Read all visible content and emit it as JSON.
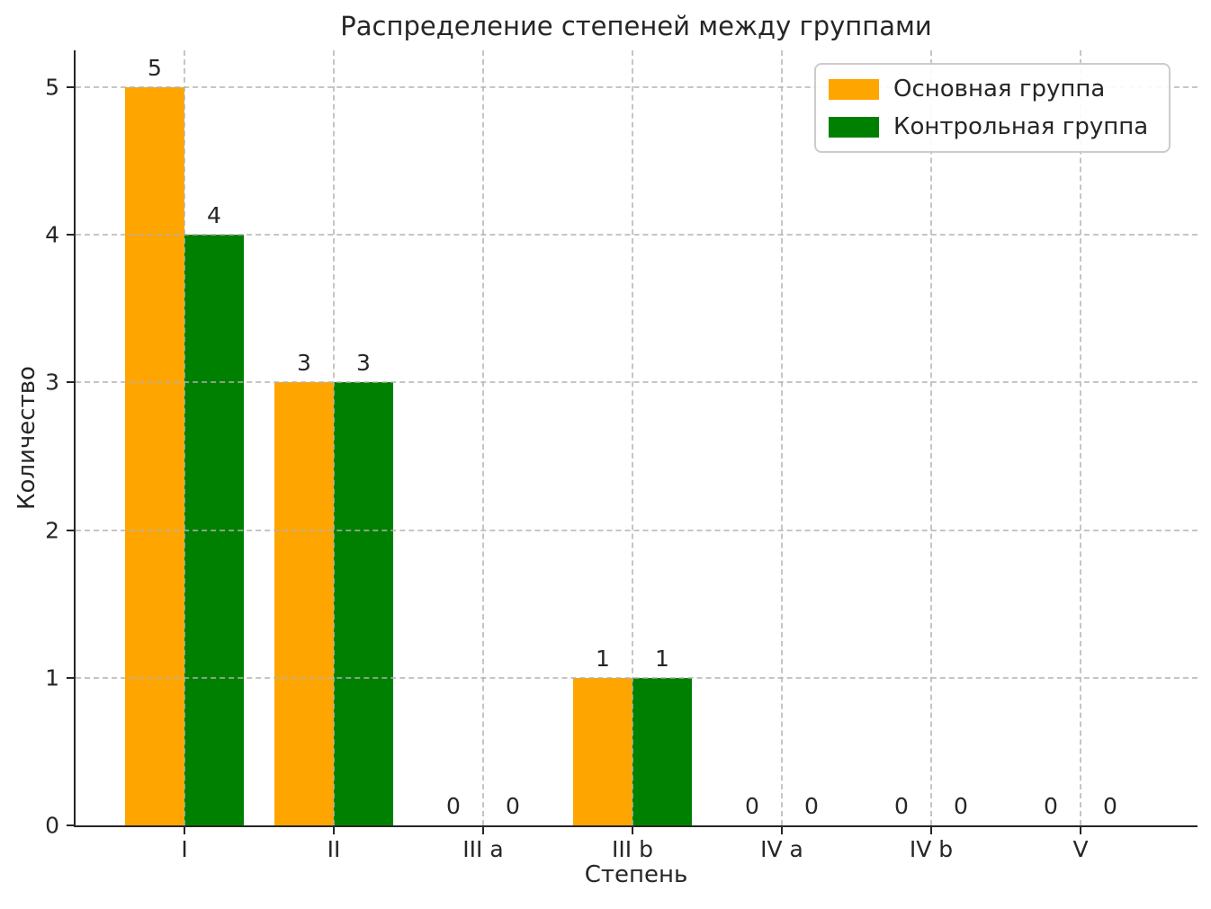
{
  "chart_data": {
    "type": "bar",
    "title": "Распределение степеней между группами",
    "xlabel": "Степень",
    "ylabel": "Количество",
    "categories": [
      "I",
      "II",
      "III a",
      "III b",
      "IV a",
      "IV b",
      "V"
    ],
    "series": [
      {
        "name": "Основная группа",
        "color": "#FFA500",
        "values": [
          5,
          3,
          0,
          1,
          0,
          0,
          0
        ]
      },
      {
        "name": "Контрольная группа",
        "color": "#008000",
        "values": [
          4,
          3,
          0,
          1,
          0,
          0,
          0
        ]
      }
    ],
    "yticks": [
      0,
      1,
      2,
      3,
      4,
      5
    ],
    "ylim": [
      0,
      5.25
    ],
    "grid": "dashed, horizontal and vertical, drawn over bars",
    "legend_position": "upper right",
    "bar_value_labels": true
  }
}
